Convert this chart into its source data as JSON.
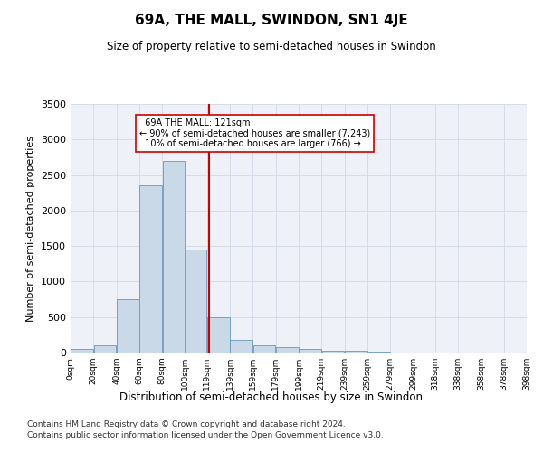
{
  "title": "69A, THE MALL, SWINDON, SN1 4JE",
  "subtitle": "Size of property relative to semi-detached houses in Swindon",
  "xlabel": "Distribution of semi-detached houses by size in Swindon",
  "ylabel": "Number of semi-detached properties",
  "footnote1": "Contains HM Land Registry data © Crown copyright and database right 2024.",
  "footnote2": "Contains public sector information licensed under the Open Government Licence v3.0.",
  "property_size": 121,
  "property_label": "69A THE MALL: 121sqm",
  "pct_smaller": 90,
  "n_smaller": 7243,
  "pct_larger": 10,
  "n_larger": 766,
  "bar_left_edges": [
    0,
    20,
    40,
    60,
    80,
    100,
    119,
    139,
    159,
    179,
    199,
    219,
    239,
    259,
    279,
    299,
    318,
    338,
    358,
    378
  ],
  "bar_widths": [
    20,
    20,
    20,
    20,
    20,
    19,
    20,
    20,
    20,
    20,
    20,
    20,
    20,
    20,
    20,
    19,
    20,
    20,
    20,
    20
  ],
  "bar_heights": [
    50,
    100,
    750,
    2350,
    2700,
    1450,
    500,
    175,
    100,
    75,
    50,
    30,
    20,
    10,
    5,
    3,
    2,
    1,
    0,
    0
  ],
  "bar_color": "#c9d9e8",
  "bar_edge_color": "#6699bb",
  "property_line_x": 121,
  "property_line_color": "#cc0000",
  "annotation_box_color": "#cc0000",
  "ylim": [
    0,
    3500
  ],
  "xlim": [
    0,
    398
  ],
  "tick_positions": [
    0,
    20,
    40,
    60,
    80,
    100,
    119,
    139,
    159,
    179,
    199,
    219,
    239,
    259,
    279,
    299,
    318,
    338,
    358,
    378,
    398
  ],
  "tick_labels": [
    "0sqm",
    "20sqm",
    "40sqm",
    "60sqm",
    "80sqm",
    "100sqm",
    "119sqm",
    "139sqm",
    "159sqm",
    "179sqm",
    "199sqm",
    "219sqm",
    "239sqm",
    "259sqm",
    "279sqm",
    "299sqm",
    "318sqm",
    "338sqm",
    "358sqm",
    "378sqm",
    "398sqm"
  ],
  "ytick_positions": [
    0,
    500,
    1000,
    1500,
    2000,
    2500,
    3000,
    3500
  ],
  "grid_color": "#d0d8e8",
  "background_color": "#eef2f8"
}
